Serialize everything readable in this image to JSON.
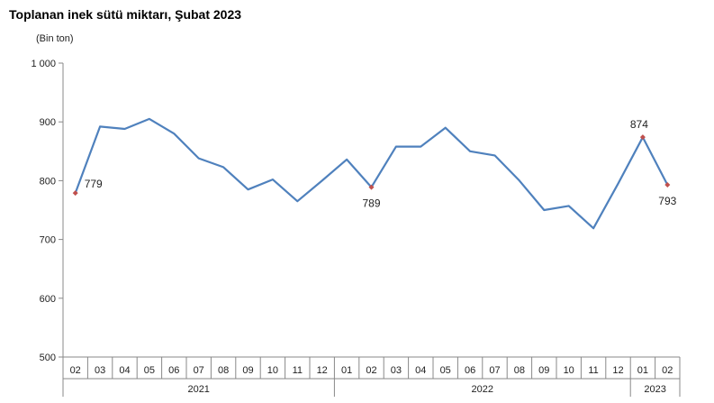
{
  "chart_data": {
    "type": "line",
    "title": "Toplanan inek sütü miktarı, Şubat 2023",
    "unit": "(Bin  ton)",
    "ylim": [
      500,
      1000
    ],
    "y_ticks": [
      500,
      600,
      700,
      800,
      900,
      1000
    ],
    "y_tick_labels": [
      "500",
      "600",
      "700",
      "800",
      "900",
      "1 000"
    ],
    "categories": [
      "02",
      "03",
      "04",
      "05",
      "06",
      "07",
      "08",
      "09",
      "10",
      "11",
      "12",
      "01",
      "02",
      "03",
      "04",
      "05",
      "06",
      "07",
      "08",
      "09",
      "10",
      "11",
      "12",
      "01",
      "02"
    ],
    "year_groups": [
      {
        "label": "2021",
        "count": 11
      },
      {
        "label": "2022",
        "count": 12
      },
      {
        "label": "2023",
        "count": 2
      }
    ],
    "series": [
      {
        "color": "#4F81BD",
        "values": [
          779,
          892,
          888,
          905,
          880,
          838,
          823,
          785,
          802,
          765,
          800,
          836,
          789,
          858,
          858,
          890,
          850,
          843,
          800,
          750,
          757,
          719,
          795,
          874,
          793
        ]
      }
    ],
    "marker_color": "#C0504D",
    "highlighted": [
      0,
      12,
      23,
      24
    ],
    "data_labels": [
      {
        "index": 0,
        "text": "779",
        "pos": "right"
      },
      {
        "index": 12,
        "text": "789",
        "pos": "below"
      },
      {
        "index": 23,
        "text": "874",
        "pos": "above"
      },
      {
        "index": 24,
        "text": "793",
        "pos": "below"
      }
    ],
    "grid": false,
    "legend": "none"
  }
}
